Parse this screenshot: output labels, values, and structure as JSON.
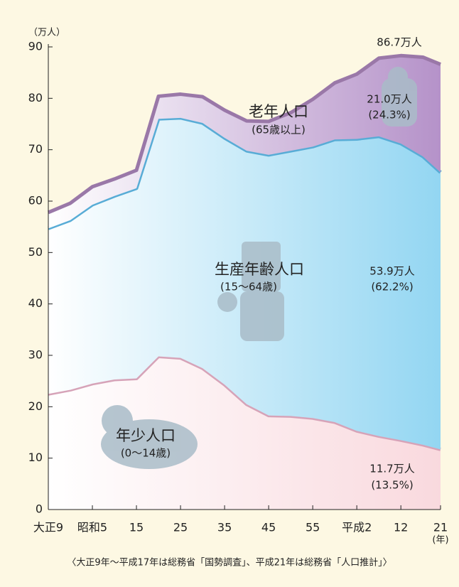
{
  "chart_data": {
    "type": "stacked_area",
    "y_unit": "（万人）",
    "x_unit": "(年)",
    "x": [
      1920,
      1925,
      1930,
      1935,
      1940,
      1945,
      1950,
      1955,
      1960,
      1965,
      1970,
      1975,
      1980,
      1985,
      1990,
      1995,
      2000,
      2005,
      2009
    ],
    "series": [
      {
        "name": "年少人口",
        "sublabel": "(0〜14歳)",
        "color": "#d6a3b8",
        "fill": "#f9d9de",
        "values": [
          22.5,
          23.3,
          24.5,
          25.3,
          25.5,
          29.8,
          29.5,
          27.5,
          24.3,
          20.5,
          18.3,
          18.2,
          17.8,
          17.0,
          15.3,
          14.3,
          13.5,
          12.6,
          11.7
        ]
      },
      {
        "name": "生産年齢人口",
        "sublabel": "(15〜64歳)",
        "color": "#58acd6",
        "fill": "#93d6f2",
        "values": [
          32.2,
          33.0,
          34.8,
          35.7,
          37.0,
          46.2,
          46.7,
          47.7,
          48.0,
          49.3,
          50.7,
          51.6,
          52.8,
          55.0,
          56.8,
          58.3,
          57.7,
          56.1,
          53.9
        ]
      },
      {
        "name": "老年人口",
        "sublabel": "(65歳以上)",
        "color": "#9a78a8",
        "fill": "#b592c9",
        "values": [
          3.1,
          3.3,
          3.5,
          3.3,
          3.5,
          4.4,
          4.6,
          5.1,
          5.4,
          5.8,
          6.5,
          7.4,
          9.2,
          11.0,
          12.6,
          15.2,
          17.1,
          19.3,
          21.0
        ]
      }
    ],
    "xlim": [
      1920,
      2009
    ],
    "xticks": [
      {
        "value": 1920,
        "label": "大正9"
      },
      {
        "value": 1930,
        "label": "昭和5"
      },
      {
        "value": 1940,
        "label": "15"
      },
      {
        "value": 1950,
        "label": "25"
      },
      {
        "value": 1960,
        "label": "35"
      },
      {
        "value": 1970,
        "label": "45"
      },
      {
        "value": 1980,
        "label": "55"
      },
      {
        "value": 1990,
        "label": "平成2"
      },
      {
        "value": 2000,
        "label": "12"
      },
      {
        "value": 2009,
        "label": "21"
      }
    ],
    "ylim": [
      0,
      90
    ],
    "yticks": [
      0,
      10,
      20,
      30,
      40,
      50,
      60,
      70,
      80,
      90
    ],
    "annotations": {
      "total": "86.7万人",
      "old": "21.0万人",
      "old_pct": "(24.3%)",
      "working": "53.9万人",
      "working_pct": "(62.2%)",
      "young": "11.7万人",
      "young_pct": "(13.5%)"
    },
    "source": "〈大正9年〜平成17年は総務省「国勢調査」、平成21年は総務省「人口推計」〉"
  }
}
